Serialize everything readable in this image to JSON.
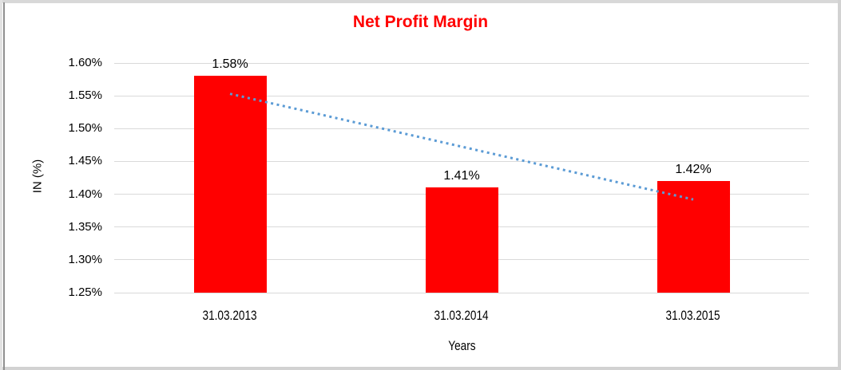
{
  "chart_data": {
    "type": "bar",
    "title": "Net Profit Margin",
    "title_color": "#FF0000",
    "categories": [
      "31.03.2013",
      "31.03.2014",
      "31.03.2015"
    ],
    "values": [
      1.58,
      1.41,
      1.42
    ],
    "bar_labels": [
      "1.58%",
      "1.41%",
      "1.42%"
    ],
    "bar_color": "#FF0000",
    "xlabel": "Years",
    "ylabel": "IN (%)",
    "ylim": [
      1.25,
      1.6
    ],
    "ytick_step": 0.05,
    "ytick_labels": [
      "1.60%",
      "1.55%",
      "1.50%",
      "1.45%",
      "1.40%",
      "1.35%",
      "1.30%",
      "1.25%"
    ],
    "grid": true,
    "gridline_color": "#D9D9D9",
    "legend": "none",
    "trendline": {
      "type": "linear",
      "style": "dotted",
      "color": "#5B9BD5",
      "start_value": 1.553,
      "end_value": 1.392
    }
  }
}
